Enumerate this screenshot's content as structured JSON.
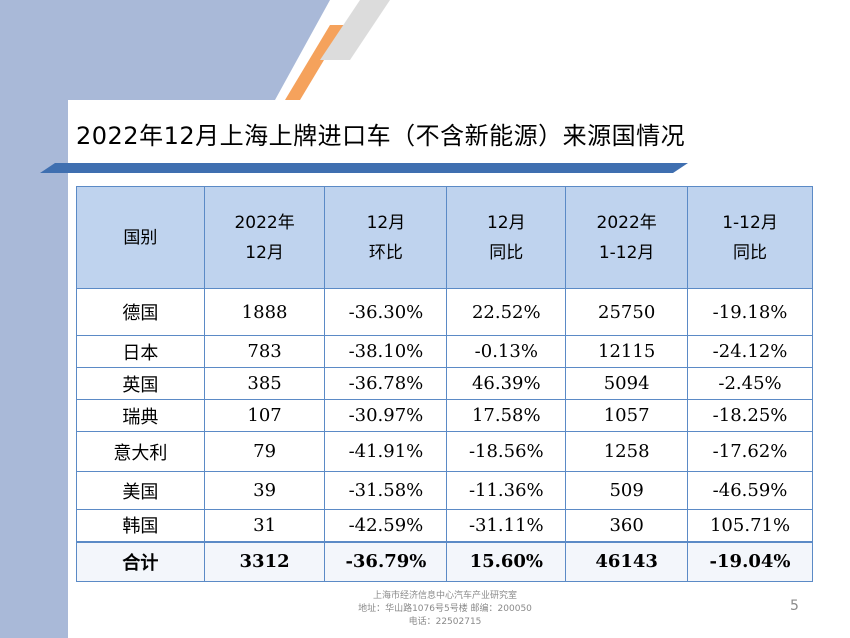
{
  "title": "2022年12月上海上牌进口车（不含新能源）来源国情况",
  "table": {
    "header": {
      "country": "国别",
      "month_line1": "2022年",
      "month_line2": "12月",
      "mom_line1": "12月",
      "mom_line2": "环比",
      "yoy_line1": "12月",
      "yoy_line2": "同比",
      "ytd_line1": "2022年",
      "ytd_line2": "1-12月",
      "ytd_yoy_line1": "1-12月",
      "ytd_yoy_line2": "同比"
    },
    "rows": [
      {
        "country": "德国",
        "month": "1888",
        "mom": "-36.30%",
        "yoy": "22.52%",
        "ytd": "25750",
        "ytd_yoy": "-19.18%"
      },
      {
        "country": "日本",
        "month": "783",
        "mom": "-38.10%",
        "yoy": "-0.13%",
        "ytd": "12115",
        "ytd_yoy": "-24.12%"
      },
      {
        "country": "英国",
        "month": "385",
        "mom": "-36.78%",
        "yoy": "46.39%",
        "ytd": "5094",
        "ytd_yoy": "-2.45%"
      },
      {
        "country": "瑞典",
        "month": "107",
        "mom": "-30.97%",
        "yoy": "17.58%",
        "ytd": "1057",
        "ytd_yoy": "-18.25%"
      },
      {
        "country": "意大利",
        "month": "79",
        "mom": "-41.91%",
        "yoy": "-18.56%",
        "ytd": "1258",
        "ytd_yoy": "-17.62%"
      },
      {
        "country": "美国",
        "month": "39",
        "mom": "-31.58%",
        "yoy": "-11.36%",
        "ytd": "509",
        "ytd_yoy": "-46.59%"
      },
      {
        "country": "韩国",
        "month": "31",
        "mom": "-42.59%",
        "yoy": "-31.11%",
        "ytd": "360",
        "ytd_yoy": "105.71%"
      }
    ],
    "total": {
      "country": "合计",
      "month": "3312",
      "mom": "-36.79%",
      "yoy": "15.60%",
      "ytd": "46143",
      "ytd_yoy": "-19.04%"
    }
  },
  "footer": {
    "line1": "上海市经济信息中心汽车产业研究室",
    "line2": "地址：华山路1076号5号楼    邮编：200050",
    "line3": "电话：22502715"
  },
  "page_number": "5",
  "colors": {
    "left_bar": "#a9b9d8",
    "header_fill": "#bfd3ee",
    "table_border": "#5b8ac6",
    "accent_orange": "#f5a25c"
  }
}
